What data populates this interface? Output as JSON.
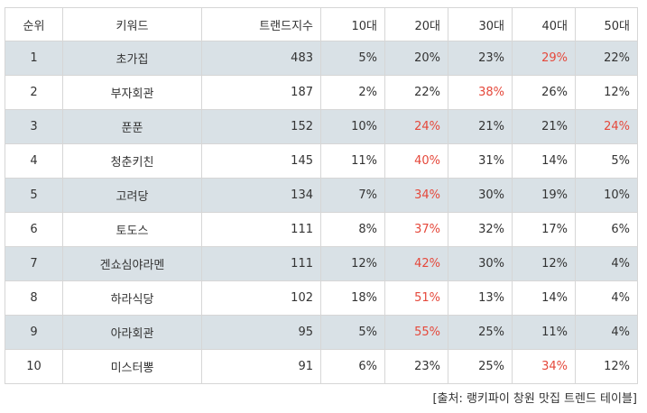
{
  "table": {
    "headers": [
      "순위",
      "키워드",
      "트랜드지수",
      "10대",
      "20대",
      "30대",
      "40대",
      "50대"
    ],
    "rows": [
      {
        "rank": "1",
        "keyword": "초가집",
        "index": "483",
        "t10": "5%",
        "t20": "20%",
        "t30": "23%",
        "t40": "29%",
        "t50": "22%",
        "highlight": [
          "t40"
        ]
      },
      {
        "rank": "2",
        "keyword": "부자회관",
        "index": "187",
        "t10": "2%",
        "t20": "22%",
        "t30": "38%",
        "t40": "26%",
        "t50": "12%",
        "highlight": [
          "t30"
        ]
      },
      {
        "rank": "3",
        "keyword": "푼푼",
        "index": "152",
        "t10": "10%",
        "t20": "24%",
        "t30": "21%",
        "t40": "21%",
        "t50": "24%",
        "highlight": [
          "t20",
          "t50"
        ]
      },
      {
        "rank": "4",
        "keyword": "청춘키친",
        "index": "145",
        "t10": "11%",
        "t20": "40%",
        "t30": "31%",
        "t40": "14%",
        "t50": "5%",
        "highlight": [
          "t20"
        ]
      },
      {
        "rank": "5",
        "keyword": "고려당",
        "index": "134",
        "t10": "7%",
        "t20": "34%",
        "t30": "30%",
        "t40": "19%",
        "t50": "10%",
        "highlight": [
          "t20"
        ]
      },
      {
        "rank": "6",
        "keyword": "토도스",
        "index": "111",
        "t10": "8%",
        "t20": "37%",
        "t30": "32%",
        "t40": "17%",
        "t50": "6%",
        "highlight": [
          "t20"
        ]
      },
      {
        "rank": "7",
        "keyword": "겐쇼심야라멘",
        "index": "111",
        "t10": "12%",
        "t20": "42%",
        "t30": "30%",
        "t40": "12%",
        "t50": "4%",
        "highlight": [
          "t20"
        ]
      },
      {
        "rank": "8",
        "keyword": "하라식당",
        "index": "102",
        "t10": "18%",
        "t20": "51%",
        "t30": "13%",
        "t40": "14%",
        "t50": "4%",
        "highlight": [
          "t20"
        ]
      },
      {
        "rank": "9",
        "keyword": "아라회관",
        "index": "95",
        "t10": "5%",
        "t20": "55%",
        "t30": "25%",
        "t40": "11%",
        "t50": "4%",
        "highlight": [
          "t20"
        ]
      },
      {
        "rank": "10",
        "keyword": "미스터뽕",
        "index": "91",
        "t10": "6%",
        "t20": "23%",
        "t30": "25%",
        "t40": "34%",
        "t50": "12%",
        "highlight": [
          "t40"
        ]
      }
    ]
  },
  "source": "[출처: 랭키파이 창원 맛집 트렌드 테이블]",
  "colors": {
    "highlight": "#e5483b",
    "shaded_row": "#d9e1e6",
    "border": "#d6d6d6",
    "text": "#333333"
  }
}
